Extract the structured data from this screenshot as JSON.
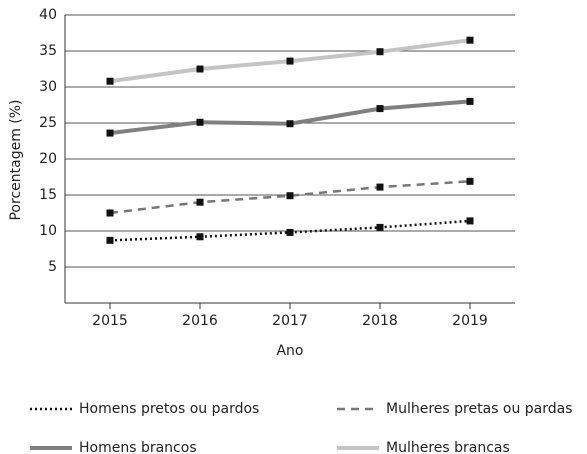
{
  "chart_data": {
    "type": "line",
    "x_label": "Ano",
    "y_label": "Porcentagem (%)",
    "categories": [
      "2015",
      "2016",
      "2017",
      "2018",
      "2019"
    ],
    "series": [
      {
        "name": "Homens pretos ou pardos",
        "color": "#111111",
        "dash": "dotted",
        "values": [
          8.7,
          9.2,
          9.8,
          10.5,
          11.4
        ]
      },
      {
        "name": "Mulheres pretas ou pardas",
        "color": "#777777",
        "dash": "dashed",
        "values": [
          12.5,
          14.0,
          14.9,
          16.1,
          16.9
        ]
      },
      {
        "name": "Homens brancos",
        "color": "#808080",
        "dash": "solid",
        "values": [
          23.6,
          25.1,
          24.9,
          27.0,
          28.0
        ]
      },
      {
        "name": "Mulheres brancas",
        "color": "#c4c4c4",
        "dash": "solid",
        "values": [
          30.8,
          32.5,
          33.6,
          34.9,
          36.5
        ]
      }
    ],
    "marker_color": "#111111",
    "ylim": [
      0,
      40
    ],
    "yticks": [
      5,
      10,
      15,
      20,
      25,
      30,
      35,
      40
    ],
    "grid": true,
    "legend": "bottom"
  }
}
